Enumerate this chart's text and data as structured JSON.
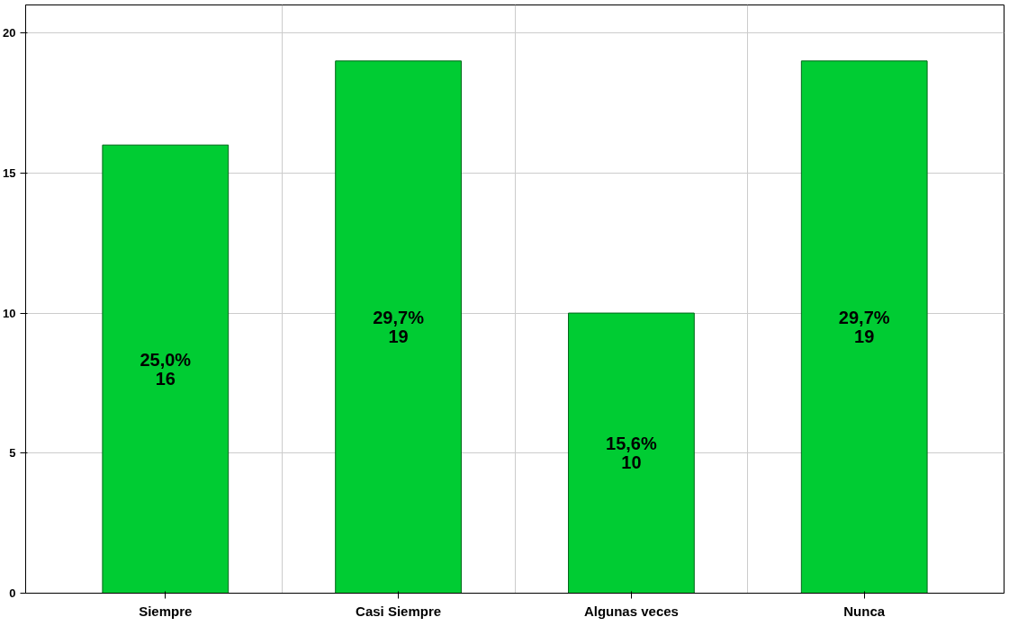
{
  "chart_data": {
    "type": "bar",
    "categories": [
      "Siempre",
      "Casi Siempre",
      "Algunas veces",
      "Nunca"
    ],
    "values": [
      16,
      19,
      10,
      19
    ],
    "color": "#00cc33",
    "value_labels": [
      "25,0%\n16",
      "29,7%\n19",
      "15,6%\n10",
      "29,7%\n19"
    ],
    "ylim": [
      0,
      21
    ],
    "yticks": [
      0,
      5,
      10,
      15,
      20
    ],
    "grid": true
  }
}
